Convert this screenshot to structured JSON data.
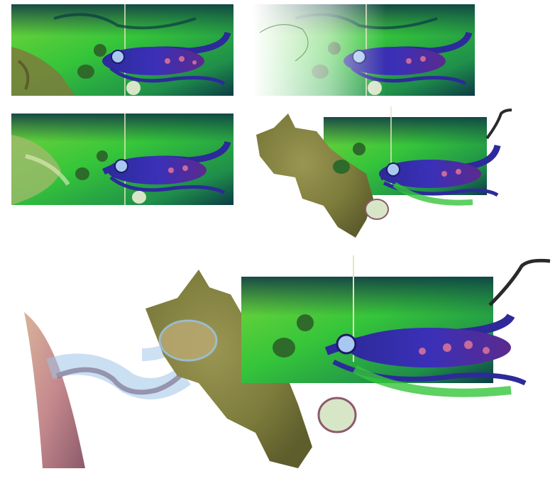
{
  "image": {
    "panels": [
      {
        "id": "panel-1",
        "stage": "full-scene-painting"
      },
      {
        "id": "panel-2",
        "stage": "scene-with-white-fade"
      },
      {
        "id": "panel-3",
        "stage": "scene-variant-painting"
      },
      {
        "id": "panel-4",
        "stage": "cutout-with-land-mass"
      },
      {
        "id": "panel-5",
        "stage": "final-composite-with-branch"
      }
    ],
    "colors": {
      "sea_green": "#35c53a",
      "deep_teal": "#0c3b46",
      "fish_blue": "#3a30b8",
      "fish_purple": "#5b2a8e",
      "land_olive": "#7d7c3c",
      "splash_blue": "#9ec4e6",
      "branch_pink": "#c58a8e"
    }
  }
}
